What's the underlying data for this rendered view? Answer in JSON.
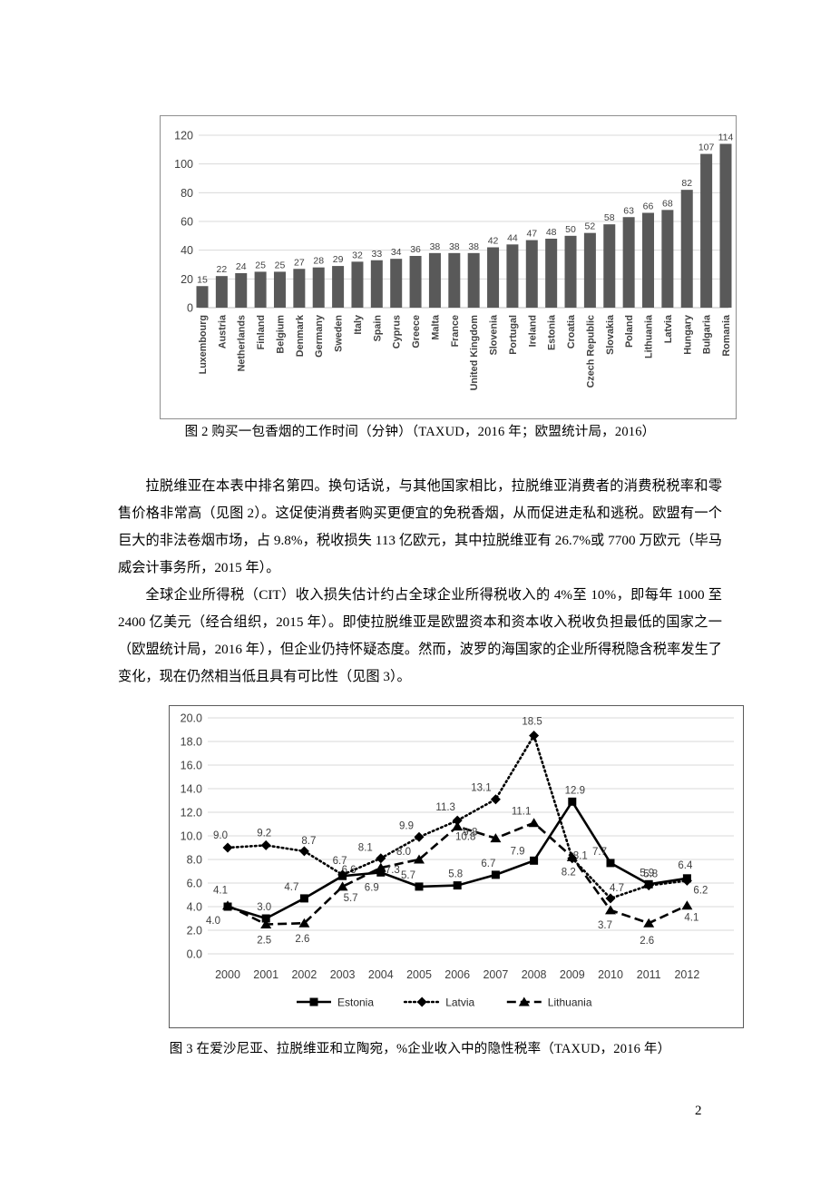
{
  "page": {
    "number": "2"
  },
  "figure2": {
    "caption": "图 2  购买一包香烟的工作时间（分钟）（TAXUD，2016 年；欧盟统计局，2016）"
  },
  "figure3": {
    "caption": "图 3  在爱沙尼亚、拉脱维亚和立陶宛，%企业收入中的隐性税率（TAXUD，2016 年）"
  },
  "paragraphs": {
    "p1": "拉脱维亚在本表中排名第四。换句话说，与其他国家相比，拉脱维亚消费者的消费税税率和零售价格非常高（见图 2）。这促使消费者购买更便宜的免税香烟，从而促进走私和逃税。欧盟有一个巨大的非法卷烟市场，占 9.8%，税收损失 113 亿欧元，其中拉脱维亚有 26.7%或 7700 万欧元（毕马威会计事务所，2015 年）。",
    "p2": "全球企业所得税（CIT）收入损失估计约占全球企业所得税收入的 4%至 10%，即每年 1000 至 2400 亿美元（经合组织，2015 年）。即使拉脱维亚是欧盟资本和资本收入税收负担最低的国家之一（欧盟统计局，2016 年），但企业仍持怀疑态度。然而，波罗的海国家的企业所得税隐含税率发生了变化，现在仍然相当低且具有可比性（见图 3）。"
  },
  "chart_data": [
    {
      "type": "bar",
      "title": "购买一包香烟的工作时间（分钟）",
      "categories": [
        "Luxembourg",
        "Austria",
        "Netherlands",
        "Finland",
        "Belgium",
        "Denmark",
        "Germany",
        "Sweden",
        "Italy",
        "Spain",
        "Cyprus",
        "Greece",
        "Malta",
        "France",
        "United Kingdom",
        "Slovenia",
        "Portugal",
        "Ireland",
        "Estonia",
        "Croatia",
        "Czech Republic",
        "Slovakia",
        "Poland",
        "Lithuania",
        "Latvia",
        "Hungary",
        "Bulgaria",
        "Romania"
      ],
      "values": [
        15,
        22,
        24,
        25,
        25,
        27,
        28,
        29,
        32,
        33,
        34,
        36,
        38,
        38,
        38,
        42,
        44,
        47,
        48,
        50,
        52,
        58,
        63,
        66,
        68,
        82,
        107,
        114
      ],
      "xlabel": "",
      "ylabel": "",
      "ylim": [
        0,
        120
      ],
      "yticks": [
        0,
        20,
        40,
        60,
        80,
        100,
        120
      ],
      "grid": true,
      "bar_color": "#595959",
      "label_color": "#404040",
      "grid_color": "#d9d9d9",
      "value_labels": true,
      "legend_position": "none"
    },
    {
      "type": "line",
      "title": "%企业收入中的隐性税率",
      "x": [
        2000,
        2001,
        2002,
        2003,
        2004,
        2005,
        2006,
        2007,
        2008,
        2009,
        2010,
        2011,
        2012
      ],
      "series": [
        {
          "name": "Estonia",
          "marker": "square",
          "line_style": "solid",
          "values": [
            4.0,
            3.0,
            4.7,
            6.6,
            6.9,
            5.7,
            5.8,
            6.7,
            7.9,
            12.9,
            7.7,
            5.9,
            6.4
          ]
        },
        {
          "name": "Latvia",
          "marker": "diamond",
          "line_style": "dotted",
          "values": [
            9.0,
            9.2,
            8.7,
            6.7,
            8.1,
            9.9,
            11.3,
            13.1,
            18.5,
            8.1,
            4.7,
            5.8,
            6.2
          ]
        },
        {
          "name": "Lithuania",
          "marker": "triangle",
          "line_style": "dashed",
          "values": [
            4.1,
            2.5,
            2.6,
            5.7,
            7.3,
            8.0,
            10.8,
            9.8,
            11.1,
            8.2,
            3.7,
            2.6,
            4.1
          ]
        }
      ],
      "ylim": [
        0,
        20
      ],
      "ytick_step": 2,
      "ytick_format": "one_decimal",
      "grid": true,
      "series_color": "#000000",
      "label_color": "#3f3f3f",
      "grid_color": "#d9d9d9",
      "value_labels": true,
      "legend_position": "bottom"
    }
  ]
}
